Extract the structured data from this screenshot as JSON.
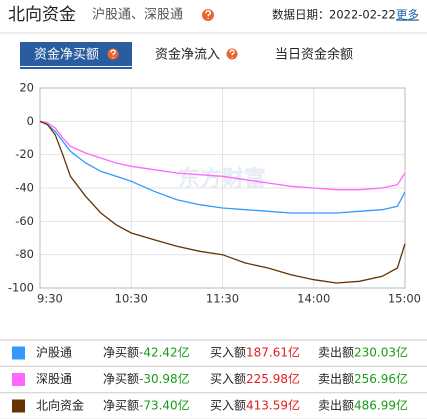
{
  "header": {
    "title": "北向资金",
    "subtitle": "沪股通、深股通",
    "date_label": "数据日期：",
    "date": "2022-02-22",
    "more": "更多"
  },
  "tabs": [
    "资金净买额",
    "资金净流入",
    "当日资金余额"
  ],
  "chart_data": {
    "type": "line",
    "watermark": "东方财富",
    "x": [
      0,
      5,
      10,
      15,
      20,
      30,
      40,
      50,
      60,
      75,
      90,
      105,
      120,
      135,
      150,
      165,
      180,
      195,
      210,
      225,
      235,
      240
    ],
    "xlim": [
      0,
      240
    ],
    "xticks": [
      {
        "value": 0,
        "label": "9:30"
      },
      {
        "value": 60,
        "label": "10:30"
      },
      {
        "value": 120,
        "label": "11:30"
      },
      {
        "value": 180,
        "label": "14:00"
      },
      {
        "value": 240,
        "label": "15:00"
      }
    ],
    "ylim": [
      -100,
      20
    ],
    "yticks": [
      -100,
      -80,
      -60,
      -40,
      -20,
      0,
      20
    ],
    "grid": true,
    "series": [
      {
        "name": "沪股通",
        "color": "#3399ff",
        "values": [
          0,
          -2,
          -6,
          -12,
          -18,
          -25,
          -30,
          -33,
          -36,
          -42,
          -47,
          -50,
          -52,
          -53,
          -54,
          -55,
          -55,
          -55,
          -54,
          -53,
          -51,
          -42.42
        ]
      },
      {
        "name": "深股通",
        "color": "#ff66ff",
        "values": [
          0,
          -1,
          -4,
          -10,
          -15,
          -19,
          -22,
          -25,
          -27,
          -29,
          -31,
          -32,
          -33,
          -35,
          -37,
          -39,
          -40,
          -41,
          -41,
          -40,
          -38,
          -30.98
        ]
      },
      {
        "name": "北向资金",
        "color": "#663300",
        "values": [
          0,
          -2,
          -8,
          -20,
          -33,
          -45,
          -55,
          -62,
          -67,
          -71,
          -75,
          -78,
          -80,
          -85,
          -88,
          -92,
          -95,
          -97,
          -96,
          -93,
          -88,
          -73.4
        ]
      }
    ]
  },
  "table": {
    "rows": [
      {
        "net_label": "净买额",
        "net": "-42.42亿",
        "buy_label": "买入额",
        "buy": "187.61亿",
        "sell_label": "卖出额",
        "sell": "230.03亿"
      },
      {
        "net_label": "净买额",
        "net": "-30.98亿",
        "buy_label": "买入额",
        "buy": "225.98亿",
        "sell_label": "卖出额",
        "sell": "256.96亿"
      },
      {
        "net_label": "净买额",
        "net": "-73.40亿",
        "buy_label": "买入额",
        "buy": "413.59亿",
        "sell_label": "卖出额",
        "sell": "486.99亿"
      }
    ]
  }
}
